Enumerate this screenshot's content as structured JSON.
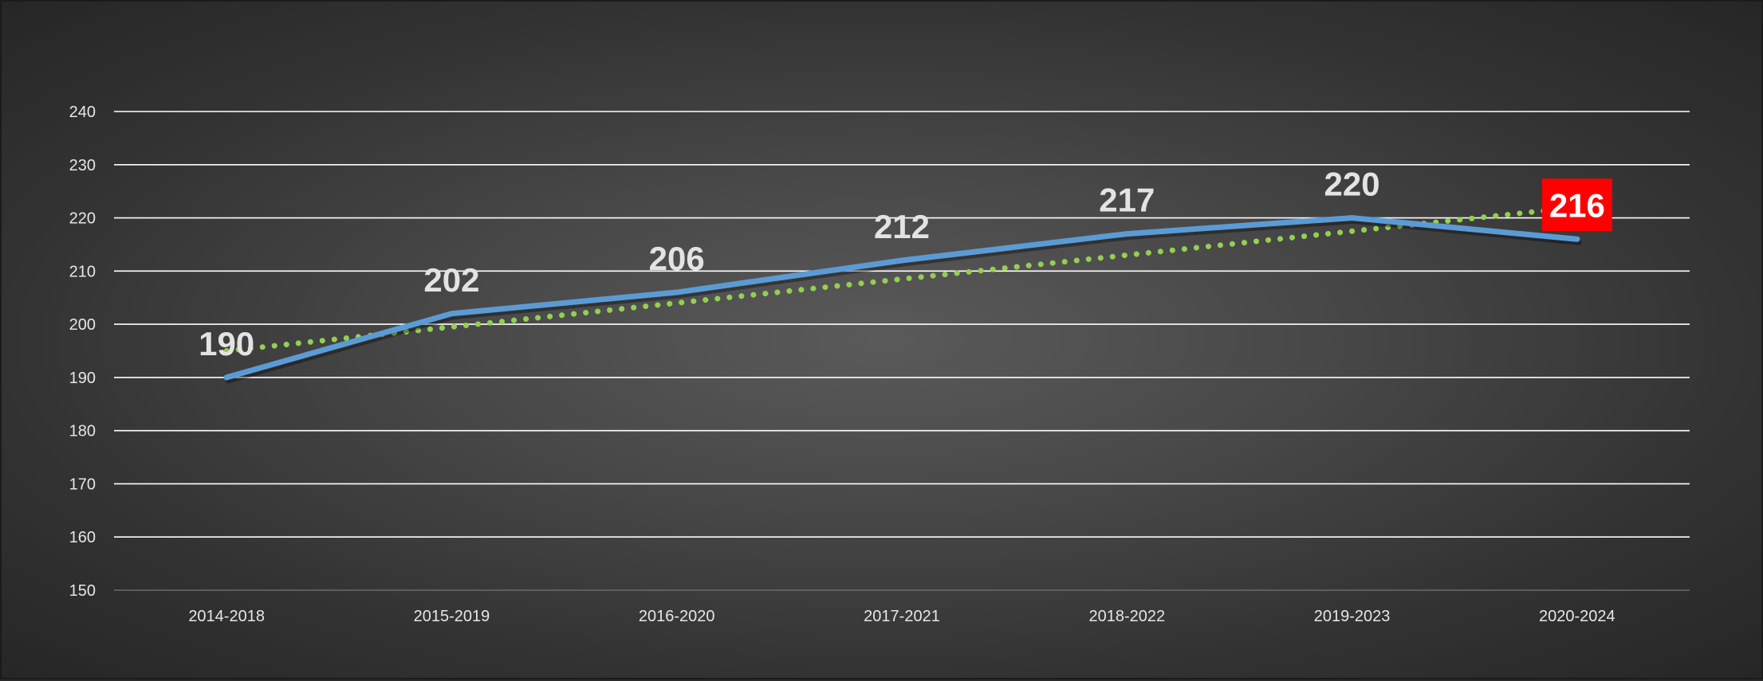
{
  "chart_data": {
    "type": "line",
    "title": "",
    "xlabel": "",
    "ylabel": "",
    "categories": [
      "2014-2018",
      "2015-2019",
      "2016-2020",
      "2017-2021",
      "2018-2022",
      "2019-2023",
      "2020-2024"
    ],
    "ylim": [
      150,
      240
    ],
    "yticks": [
      150,
      160,
      170,
      180,
      190,
      200,
      210,
      220,
      230,
      240
    ],
    "grid": true,
    "legend": "none",
    "series": [
      {
        "values": [
          190,
          202,
          206,
          212,
          217,
          220,
          216
        ],
        "data_labels": [
          "190",
          "202",
          "206",
          "212",
          "217",
          "220",
          "216"
        ],
        "color": "#5b9bd5",
        "style": "solid"
      }
    ],
    "trendline": {
      "type": "linear",
      "start": 195,
      "end": 222,
      "color": "#92d050",
      "style": "dotted"
    },
    "highlight": {
      "category": "2020-2024",
      "label": "216",
      "background": "#ff0000"
    },
    "colors": {
      "gridline": "#ffffff",
      "text": "#e6e6e6"
    }
  }
}
